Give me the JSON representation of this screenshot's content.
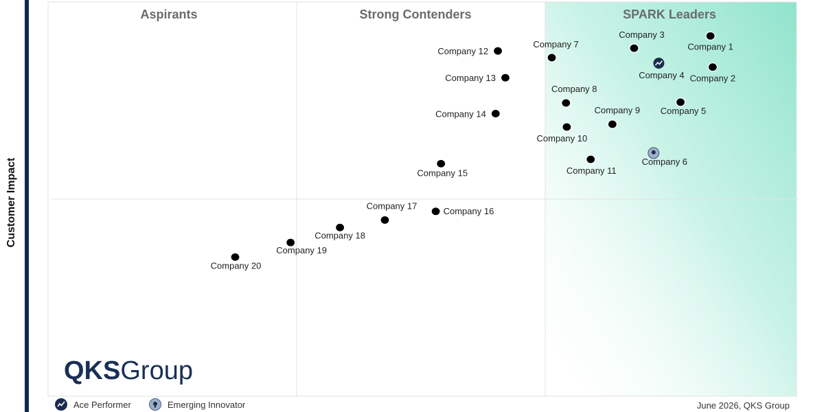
{
  "chart_data": {
    "type": "scatter",
    "ylabel": "Customer Impact",
    "xlabel": "",
    "quadrants": [
      "Aspirants",
      "Strong Contenders",
      "SPARK Leaders"
    ],
    "points": [
      {
        "name": "Company 1",
        "x": 88.5,
        "y": 91.4,
        "badge": "none"
      },
      {
        "name": "Company 2",
        "x": 88.8,
        "y": 83.5,
        "badge": "none"
      },
      {
        "name": "Company 3",
        "x": 78.3,
        "y": 88.3,
        "badge": "none"
      },
      {
        "name": "Company 4",
        "x": 81.6,
        "y": 84.5,
        "badge": "ace"
      },
      {
        "name": "Company 5",
        "x": 84.5,
        "y": 74.6,
        "badge": "none"
      },
      {
        "name": "Company 6",
        "x": 80.9,
        "y": 61.7,
        "badge": "emerging"
      },
      {
        "name": "Company 7",
        "x": 67.3,
        "y": 85.9,
        "badge": "none"
      },
      {
        "name": "Company 8",
        "x": 69.2,
        "y": 74.4,
        "badge": "none"
      },
      {
        "name": "Company 9",
        "x": 75.4,
        "y": 69.0,
        "badge": "none"
      },
      {
        "name": "Company 10",
        "x": 69.3,
        "y": 68.3,
        "badge": "none"
      },
      {
        "name": "Company 11",
        "x": 72.5,
        "y": 60.1,
        "badge": "none"
      },
      {
        "name": "Company 12",
        "x": 60.1,
        "y": 87.6,
        "badge": "none"
      },
      {
        "name": "Company 13",
        "x": 61.1,
        "y": 80.8,
        "badge": "none"
      },
      {
        "name": "Company 14",
        "x": 59.8,
        "y": 71.7,
        "badge": "none"
      },
      {
        "name": "Company 15",
        "x": 52.5,
        "y": 59.0,
        "badge": "none"
      },
      {
        "name": "Company 16",
        "x": 51.8,
        "y": 46.9,
        "badge": "none"
      },
      {
        "name": "Company 17",
        "x": 45.0,
        "y": 44.7,
        "badge": "none"
      },
      {
        "name": "Company 18",
        "x": 39.0,
        "y": 42.8,
        "badge": "none"
      },
      {
        "name": "Company 19",
        "x": 32.4,
        "y": 39.0,
        "badge": "none"
      },
      {
        "name": "Company 20",
        "x": 25.0,
        "y": 35.3,
        "badge": "none"
      }
    ],
    "xlim": [
      0,
      100
    ],
    "ylim": [
      0,
      100
    ],
    "grid": true,
    "legend_position": "bottom-left"
  },
  "branding": {
    "logo_bold": "QKS",
    "logo_regular": "Group"
  },
  "legend": [
    {
      "label": "Ace Performer",
      "icon": "ace-performer-icon",
      "color": "#1b2c4e"
    },
    {
      "label": "Emerging Innovator",
      "icon": "emerging-innovator-icon",
      "color": "#9eb0c9"
    }
  ],
  "footer": {
    "date_source": "June 2026, QKS Group"
  },
  "colors": {
    "leaders_band": "#8fe3cc",
    "title_gray": "#6b6b6b",
    "point": "#000000",
    "brand": "#1a2f55"
  }
}
